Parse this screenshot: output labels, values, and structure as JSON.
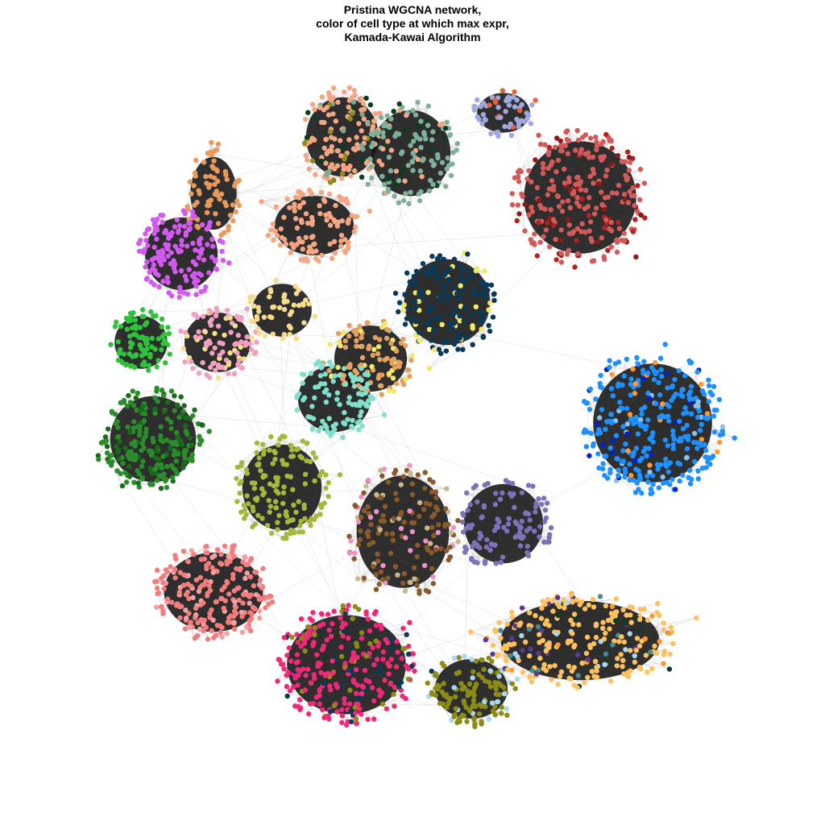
{
  "figure": {
    "title_lines": [
      "Pristina WGCNA network,",
      "color of cell type at which max expr,",
      "Kamada-Kawai Algorithm"
    ]
  },
  "network": {
    "background": "#ffffff",
    "edge_color": "#141414",
    "sparse_edge_color": "#b4b4b4",
    "modules": [
      {
        "name": "peach-cluster-top",
        "color": "#f4a582",
        "secondary": [
          "#7aa896",
          "#0b3d1f",
          "#8c8c1a"
        ]
      },
      {
        "name": "sage-cluster-top",
        "color": "#7fb09a",
        "secondary": [
          "#0b3d1f",
          "#f4a582"
        ]
      },
      {
        "name": "lavender-cluster-top-right",
        "color": "#a0a8e0",
        "secondary": [
          "#e8603c"
        ]
      },
      {
        "name": "red-cluster-right",
        "color": "#d45a5a",
        "secondary": [
          "#8b1a1a",
          "#b22222"
        ]
      },
      {
        "name": "peach-cluster-left-upper",
        "color": "#e89a5a",
        "secondary": []
      },
      {
        "name": "peach-cluster-center-upper",
        "color": "#f4a582",
        "secondary": []
      },
      {
        "name": "magenta-cluster-left",
        "color": "#d359f0",
        "secondary": []
      },
      {
        "name": "navy-cluster-center",
        "color": "#0a3a5a",
        "secondary": [
          "#f2e86a"
        ]
      },
      {
        "name": "green-cluster-left",
        "color": "#2fc23a",
        "secondary": []
      },
      {
        "name": "pink-cluster-left",
        "color": "#f0a0c0",
        "secondary": [
          "#f8e08a"
        ]
      },
      {
        "name": "yellow-cluster-center",
        "color": "#f6dc8c",
        "secondary": []
      },
      {
        "name": "orange-cluster-center",
        "color": "#e4a060",
        "secondary": [
          "#f2e86a"
        ]
      },
      {
        "name": "aqua-cluster-center",
        "color": "#80e0cc",
        "secondary": []
      },
      {
        "name": "blue-cluster-right",
        "color": "#1e90ff",
        "secondary": [
          "#0022cc",
          "#8cc0ee",
          "#ff9933"
        ]
      },
      {
        "name": "forest-cluster-left",
        "color": "#2a8c2a",
        "secondary": [
          "#1a6a1a"
        ]
      },
      {
        "name": "olive-cluster-center",
        "color": "#a4b83c",
        "secondary": []
      },
      {
        "name": "brown-cluster-center",
        "color": "#8a5a2a",
        "secondary": [
          "#c8b890",
          "#f090c8"
        ]
      },
      {
        "name": "purple-cluster-center",
        "color": "#8070b8",
        "secondary": []
      },
      {
        "name": "salmon-cluster-left-lower",
        "color": "#f47c7c",
        "secondary": [
          "#f4a0a0"
        ]
      },
      {
        "name": "hotpink-cluster-bottom",
        "color": "#f02878",
        "secondary": [
          "#0a3a5a",
          "#8c8c1a"
        ]
      },
      {
        "name": "olive-dark-cluster-bottom",
        "color": "#8c8c14",
        "secondary": [
          "#a8d8f0"
        ]
      },
      {
        "name": "mixed-cluster-bottom-right",
        "color": "#ffc060",
        "secondary": [
          "#a8d8f0",
          "#5a3a90",
          "#4a8a8a",
          "#0b3d1f",
          "#ff9933"
        ]
      }
    ]
  }
}
